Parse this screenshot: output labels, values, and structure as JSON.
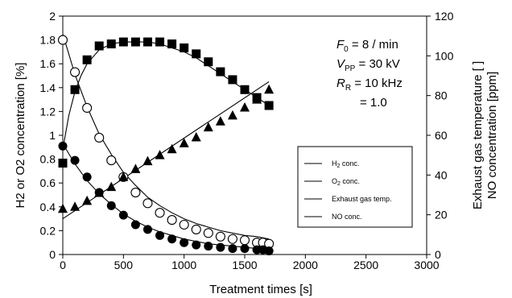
{
  "chart_data": {
    "type": "scatter",
    "x_axis": {
      "label": "Treatment times [s]",
      "range": [
        0,
        3000
      ],
      "ticks": [
        0,
        500,
        1000,
        1500,
        2000,
        2500,
        3000
      ]
    },
    "y_left": {
      "label": "H2 or O2 concentration [%]",
      "range": [
        0,
        2
      ],
      "ticks": [
        "0",
        "0.2",
        "0.4",
        "0.6",
        "0.8",
        "1",
        "1.2",
        "1.4",
        "1.6",
        "1.8",
        "2"
      ]
    },
    "y_right": {
      "label_line1": "Exhaust gas temperature [  ]",
      "label_line2": "NO concentration  [ppm]",
      "range": [
        0,
        120
      ],
      "ticks": [
        "0",
        "20",
        "40",
        "60",
        "80",
        "100",
        "120"
      ]
    },
    "parameters": [
      {
        "symbol": "F",
        "sub": "0",
        "text": "=  8   / min"
      },
      {
        "symbol": "V",
        "sub": "PP",
        "text": "= 30 kV"
      },
      {
        "symbol": "R",
        "sub": "R",
        "text": "= 10 kHz"
      },
      {
        "symbol": "",
        "sub": "",
        "text": "= 1.0"
      }
    ],
    "series": [
      {
        "name": "H2 conc.",
        "axis": "left",
        "marker": "open-circle",
        "x": [
          0,
          100,
          200,
          300,
          400,
          500,
          600,
          700,
          800,
          900,
          1000,
          1100,
          1200,
          1300,
          1400,
          1500,
          1600,
          1650,
          1700
        ],
        "y": [
          1.8,
          1.53,
          1.23,
          0.98,
          0.79,
          0.65,
          0.52,
          0.43,
          0.35,
          0.29,
          0.25,
          0.21,
          0.18,
          0.15,
          0.13,
          0.12,
          0.1,
          0.1,
          0.09
        ],
        "fit": {
          "x": [
            0,
            100,
            200,
            300,
            400,
            500,
            600,
            700,
            800,
            900,
            1000,
            1100,
            1200,
            1300,
            1400,
            1500,
            1600,
            1700
          ],
          "y": [
            1.85,
            1.51,
            1.24,
            1.01,
            0.84,
            0.69,
            0.58,
            0.48,
            0.41,
            0.35,
            0.3,
            0.26,
            0.23,
            0.2,
            0.18,
            0.16,
            0.15,
            0.13
          ]
        }
      },
      {
        "name": "O2 conc.",
        "axis": "left",
        "marker": "filled-circle",
        "x": [
          0,
          100,
          200,
          300,
          400,
          500,
          600,
          700,
          800,
          900,
          1000,
          1100,
          1200,
          1300,
          1400,
          1500,
          1600,
          1650,
          1700
        ],
        "y": [
          0.91,
          0.79,
          0.65,
          0.52,
          0.41,
          0.33,
          0.25,
          0.21,
          0.16,
          0.13,
          0.1,
          0.08,
          0.07,
          0.06,
          0.05,
          0.05,
          0.04,
          0.04,
          0.03
        ],
        "fit": {
          "x": [
            0,
            100,
            200,
            300,
            400,
            500,
            600,
            700,
            800,
            900,
            1000,
            1100,
            1200,
            1300,
            1400,
            1500,
            1600,
            1700
          ],
          "y": [
            0.93,
            0.76,
            0.62,
            0.51,
            0.42,
            0.34,
            0.28,
            0.23,
            0.19,
            0.16,
            0.13,
            0.11,
            0.09,
            0.08,
            0.07,
            0.06,
            0.05,
            0.04
          ]
        }
      },
      {
        "name": "Exhaust gas temp.",
        "axis": "right",
        "marker": "filled-square",
        "x": [
          0,
          100,
          200,
          300,
          400,
          500,
          600,
          700,
          800,
          900,
          1000,
          1100,
          1200,
          1300,
          1400,
          1500,
          1600,
          1700
        ],
        "y": [
          46,
          83,
          98,
          105,
          106,
          107,
          107,
          107,
          107,
          106,
          104,
          101,
          97,
          92,
          88,
          83,
          79,
          75
        ],
        "fit": {
          "x": [
            0,
            50,
            100,
            150,
            200,
            300,
            400,
            500,
            600,
            700,
            800,
            900,
            1000,
            1100,
            1200,
            1300,
            1400,
            1500,
            1600,
            1700
          ],
          "y": [
            53,
            70,
            82,
            90,
            96,
            103,
            106,
            107,
            107,
            107,
            106,
            104,
            102,
            99,
            95,
            91,
            87,
            83,
            79,
            75
          ]
        }
      },
      {
        "name": "NO conc.",
        "axis": "right",
        "marker": "filled-triangle",
        "x": [
          0,
          100,
          200,
          300,
          400,
          500,
          600,
          700,
          800,
          900,
          1000,
          1100,
          1200,
          1300,
          1400,
          1500,
          1600,
          1700
        ],
        "y": [
          23,
          24,
          27,
          31,
          34,
          39,
          43,
          47,
          50,
          53,
          56,
          59,
          64,
          67,
          70,
          74,
          78,
          83
        ],
        "fit": {
          "x": [
            0,
            1700
          ],
          "y": [
            18,
            87
          ]
        }
      }
    ],
    "legend": {
      "placement": "right",
      "entries": [
        {
          "base": "H",
          "sub": "2",
          "rest": " conc."
        },
        {
          "base": "O",
          "sub": "2",
          "rest": " conc."
        },
        {
          "base": "Exhaust gas temp.",
          "sub": "",
          "rest": ""
        },
        {
          "base": "NO conc.",
          "sub": "",
          "rest": ""
        }
      ]
    }
  }
}
